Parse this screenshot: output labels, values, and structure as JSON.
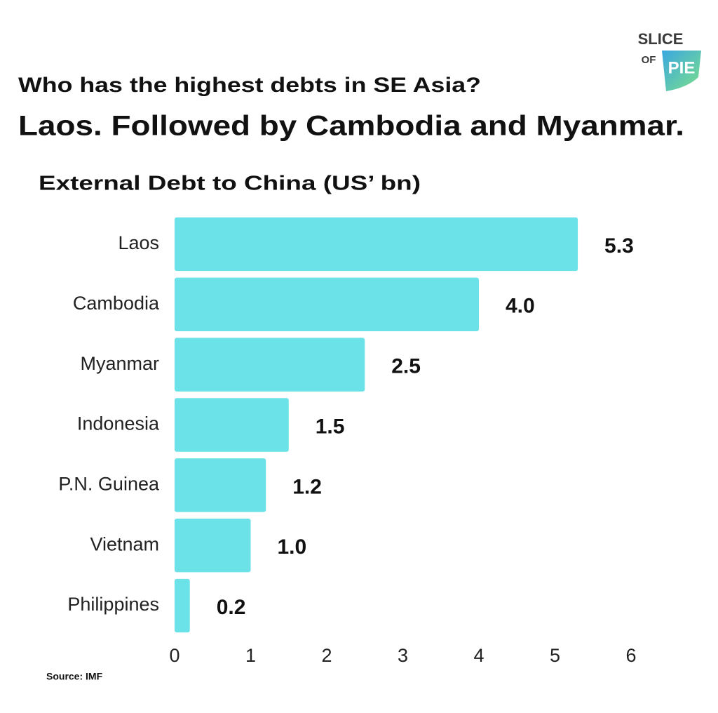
{
  "logo": {
    "top": "SLICE",
    "small": "OF",
    "main": "PIE"
  },
  "chart_data": {
    "type": "bar",
    "orientation": "horizontal",
    "title": "Who has the highest debts in SE Asia?",
    "subtitle": "Laos. Followed by Cambodia and Myanmar.",
    "axis_title": "External Debt to China (US’ bn)",
    "categories": [
      "Laos",
      "Cambodia",
      "Myanmar",
      "Indonesia",
      "P.N. Guinea",
      "Vietnam",
      "Philippines"
    ],
    "values": [
      5.3,
      4.0,
      2.5,
      1.5,
      1.2,
      1.0,
      0.2
    ],
    "value_labels": [
      "5.3",
      "4.0",
      "2.5",
      "1.5",
      "1.2",
      "1.0",
      "0.2"
    ],
    "color": "#6ae2e8",
    "xlim": [
      0,
      6
    ],
    "xticks": [
      0,
      1,
      2,
      3,
      4,
      5,
      6
    ],
    "grid": false,
    "source": "Source: IMF"
  }
}
